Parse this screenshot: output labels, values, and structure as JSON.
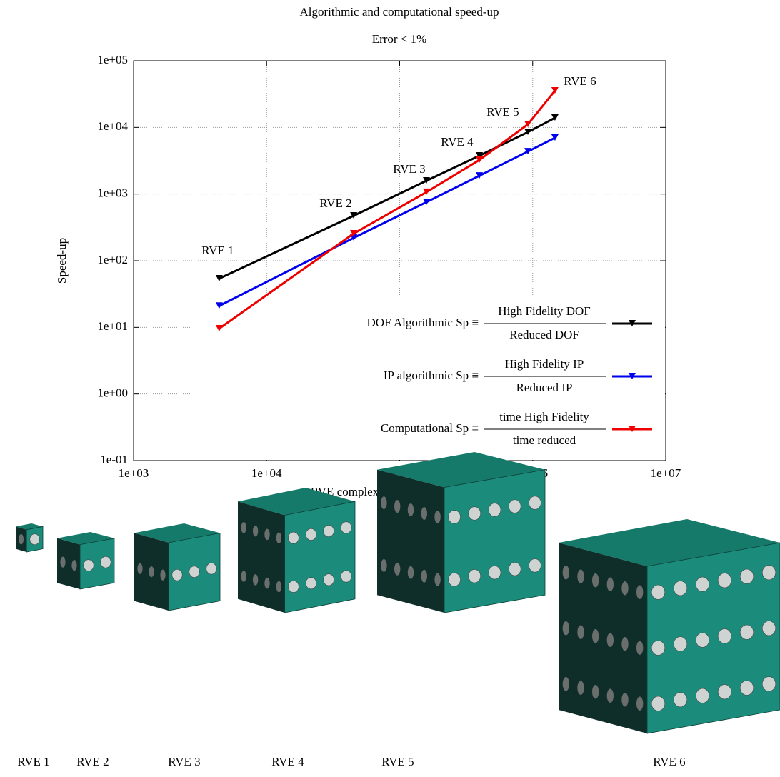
{
  "chart_data": {
    "type": "line",
    "title": "Algorithmic and computational speed-up",
    "subtitle": "Error < 1%",
    "x_label": "RVE complexity (integration points)",
    "y_label": "Speed-up",
    "log_x": true,
    "log_y": true,
    "grid": true,
    "xlim": [
      1000,
      10000000
    ],
    "xticks": [
      {
        "value": 1000,
        "label": "1e+03"
      },
      {
        "value": 10000,
        "label": "1e+04"
      },
      {
        "value": 100000,
        "label": "1e+05"
      },
      {
        "value": 1000000,
        "label": "1e+06"
      },
      {
        "value": 10000000,
        "label": "1e+07"
      }
    ],
    "ylim": [
      0.1,
      100000
    ],
    "yticks": [
      {
        "value": 0.1,
        "label": "1e-01"
      },
      {
        "value": 1,
        "label": "1e+00"
      },
      {
        "value": 10,
        "label": "1e+01"
      },
      {
        "value": 100,
        "label": "1e+02"
      },
      {
        "value": 1000,
        "label": "1e+03"
      },
      {
        "value": 10000,
        "label": "1e+04"
      },
      {
        "value": 100000,
        "label": "1e+05"
      }
    ],
    "x": [
      4400,
      45100,
      159000,
      397000,
      920000,
      1470000
    ],
    "series": [
      {
        "name": "DOF Algorithmic Sp ≡",
        "numerator": "High Fidelity DOF",
        "denominator": "Reduced DOF",
        "color": "#000000",
        "values": [
          54,
          473,
          1585,
          3760,
          8490,
          13900
        ]
      },
      {
        "name": "IP algorithmic Sp ≡",
        "numerator": "High Fidelity IP",
        "denominator": "Reduced IP",
        "color": "#0000ee",
        "values": [
          21,
          220,
          757,
          1880,
          4350,
          6970
        ]
      },
      {
        "name": "Computational Sp ≡",
        "numerator": "time High Fidelity",
        "denominator": "time reduced",
        "color": "#ee0000",
        "values": [
          9.6,
          255,
          1070,
          3240,
          11100,
          35500
        ]
      }
    ],
    "annotations": [
      "RVE 1",
      "RVE 2",
      "RVE 3",
      "RVE 4",
      "RVE 5",
      "RVE 6"
    ]
  },
  "illustration": {
    "labels": [
      "RVE 1",
      "RVE 2",
      "RVE 3",
      "RVE 4",
      "RVE 5",
      "RVE 6"
    ]
  }
}
